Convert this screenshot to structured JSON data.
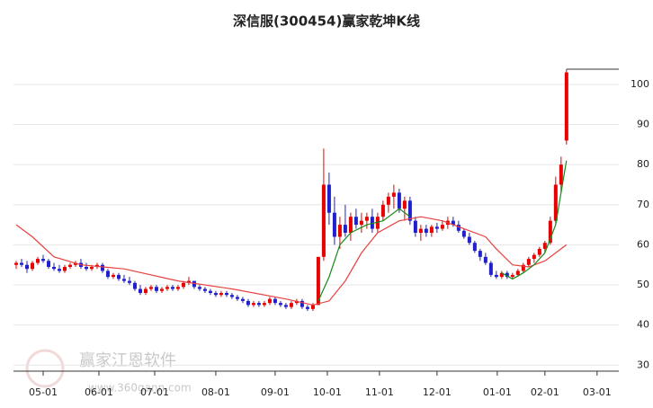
{
  "chart_data": {
    "type": "candlestick",
    "title": "深信服(300454)赢家乾坤K线",
    "watermark": "赢家江恩软件",
    "watermark_url": "www.360gann.com",
    "up_color": "#e60000",
    "down_color": "#1f1fcc",
    "ylim": [
      28.5,
      108.5
    ],
    "yticks": [
      30,
      40,
      50,
      60,
      70,
      80,
      90,
      100
    ],
    "xlim": [
      -0.5,
      111.7
    ],
    "xticks": [
      {
        "value": 5,
        "label": "05-01"
      },
      {
        "value": 15.33,
        "label": "06-01"
      },
      {
        "value": 25.67,
        "label": "07-01"
      },
      {
        "value": 37,
        "label": "08-01"
      },
      {
        "value": 48,
        "label": "09-01"
      },
      {
        "value": 57.67,
        "label": "10-01"
      },
      {
        "value": 67.33,
        "label": "11-01"
      },
      {
        "value": 78,
        "label": "12-01"
      },
      {
        "value": 89.17,
        "label": "01-01"
      },
      {
        "value": 98,
        "label": "02-01"
      },
      {
        "value": 107.67,
        "label": "03-01"
      }
    ],
    "grid": true,
    "ohlc": [
      [
        55,
        56,
        54,
        55.5
      ],
      [
        55.5,
        56.5,
        54.5,
        55
      ],
      [
        55,
        56,
        53,
        54
      ],
      [
        54,
        56,
        53.5,
        55.5
      ],
      [
        55.5,
        57,
        55,
        56.5
      ],
      [
        56.5,
        57.5,
        55.5,
        56
      ],
      [
        56,
        56.5,
        54,
        54.5
      ],
      [
        54.5,
        55.5,
        53.5,
        54
      ],
      [
        54,
        55,
        53,
        53.5
      ],
      [
        53.5,
        55,
        53,
        54.5
      ],
      [
        54.5,
        55.5,
        54,
        55
      ],
      [
        55,
        56,
        54.5,
        55.5
      ],
      [
        55.5,
        56.5,
        54,
        54.5
      ],
      [
        54.5,
        55.5,
        53.5,
        54
      ],
      [
        54,
        55,
        53.5,
        54.5
      ],
      [
        54.5,
        55.5,
        54,
        55
      ],
      [
        55,
        55.5,
        53,
        53.5
      ],
      [
        53.5,
        54,
        51.5,
        52
      ],
      [
        52,
        53,
        51.5,
        52.5
      ],
      [
        52.5,
        53,
        51,
        51.5
      ],
      [
        51.5,
        52.5,
        50.5,
        51
      ],
      [
        51,
        52,
        50,
        50.5
      ],
      [
        50.5,
        51,
        48.5,
        49
      ],
      [
        49,
        50,
        47.5,
        48
      ],
      [
        48,
        49.5,
        47.5,
        49
      ],
      [
        49,
        50,
        48.5,
        49.5
      ],
      [
        49.5,
        50,
        48,
        48.5
      ],
      [
        48.5,
        49.5,
        48,
        49
      ],
      [
        49,
        50,
        48.5,
        49.5
      ],
      [
        49.5,
        50,
        48.5,
        49
      ],
      [
        49,
        50,
        48.5,
        49.5
      ],
      [
        49.5,
        51,
        49,
        50.5
      ],
      [
        50.5,
        52,
        50,
        51
      ],
      [
        51,
        51,
        49,
        49.5
      ],
      [
        49.5,
        50,
        48.5,
        49
      ],
      [
        49,
        49.5,
        48,
        48.5
      ],
      [
        48.5,
        49,
        47.5,
        48
      ],
      [
        48,
        48.5,
        47,
        47.5
      ],
      [
        47.5,
        48.5,
        47,
        48
      ],
      [
        48,
        48.5,
        47,
        47.5
      ],
      [
        47.5,
        48,
        46.5,
        47
      ],
      [
        47,
        47.5,
        46,
        46.5
      ],
      [
        46.5,
        47,
        45.5,
        46
      ],
      [
        46,
        46.5,
        44.5,
        45
      ],
      [
        45,
        46,
        44.5,
        45.5
      ],
      [
        45.5,
        46,
        44.5,
        45
      ],
      [
        45,
        46,
        44.5,
        45.5
      ],
      [
        45.5,
        47,
        45,
        46.5
      ],
      [
        46.5,
        47,
        45,
        45.5
      ],
      [
        45.5,
        46,
        44.5,
        45
      ],
      [
        45,
        45.5,
        44,
        44.5
      ],
      [
        44.5,
        46,
        44,
        45.5
      ],
      [
        45.5,
        46.5,
        45,
        46
      ],
      [
        46,
        46.5,
        44,
        44.5
      ],
      [
        44.5,
        45,
        43.5,
        44
      ],
      [
        44,
        45.5,
        43.5,
        45
      ],
      [
        45,
        57,
        45,
        57
      ],
      [
        57,
        84,
        56,
        75
      ],
      [
        75,
        78,
        65,
        68
      ],
      [
        68,
        72,
        60,
        62
      ],
      [
        62,
        67,
        59,
        65
      ],
      [
        65,
        70,
        62,
        63
      ],
      [
        63,
        68,
        61,
        67
      ],
      [
        67,
        69,
        64,
        65
      ],
      [
        65,
        68,
        63,
        66
      ],
      [
        66,
        68,
        64,
        67
      ],
      [
        67,
        69,
        63,
        64
      ],
      [
        64,
        68,
        63,
        67
      ],
      [
        67,
        71,
        66,
        70
      ],
      [
        70,
        73,
        68,
        72
      ],
      [
        72,
        75,
        69,
        73
      ],
      [
        73,
        74,
        68,
        69
      ],
      [
        69,
        72,
        66,
        71
      ],
      [
        71,
        72,
        65,
        66
      ],
      [
        66,
        67,
        62,
        63
      ],
      [
        63,
        65,
        61,
        64
      ],
      [
        64,
        65,
        62,
        63
      ],
      [
        63,
        65,
        62,
        64.5
      ],
      [
        64.5,
        65.5,
        63,
        64
      ],
      [
        64,
        66,
        63.5,
        65
      ],
      [
        65,
        67,
        64,
        66
      ],
      [
        66,
        67,
        64.5,
        65
      ],
      [
        65,
        66,
        63,
        63.5
      ],
      [
        63.5,
        64,
        61.5,
        62
      ],
      [
        62,
        63,
        60,
        60.5
      ],
      [
        60.5,
        61,
        58,
        58.5
      ],
      [
        58.5,
        59,
        56,
        57
      ],
      [
        57,
        58,
        55,
        55.5
      ],
      [
        55.5,
        56,
        52,
        52.5
      ],
      [
        52.5,
        53.5,
        51.5,
        52
      ],
      [
        52,
        53.5,
        51.5,
        53
      ],
      [
        53,
        53.5,
        51.5,
        52
      ],
      [
        52,
        53,
        51.5,
        52.5
      ],
      [
        52.5,
        54,
        52,
        53.5
      ],
      [
        53.5,
        55.5,
        53,
        55
      ],
      [
        55,
        57,
        54.5,
        56.5
      ],
      [
        56.5,
        58,
        55.5,
        57.5
      ],
      [
        57.5,
        59.5,
        57,
        59
      ],
      [
        59,
        61,
        58,
        60.5
      ],
      [
        60.5,
        67,
        60,
        66
      ],
      [
        66,
        77,
        65,
        75
      ],
      [
        75,
        82,
        73,
        80
      ],
      [
        86,
        103.8,
        85,
        103
      ]
    ],
    "ma": [
      {
        "color": "#e8403f",
        "x": [
          0,
          3,
          7,
          12,
          20,
          30,
          40,
          50,
          55,
          58,
          61,
          64,
          67,
          71,
          75,
          79,
          83,
          87,
          89,
          92,
          95,
          98,
          100,
          102
        ],
        "values": [
          65,
          62,
          57,
          55,
          54,
          51,
          49,
          46.5,
          45,
          46,
          51,
          58,
          63,
          66,
          67,
          66,
          64,
          62,
          59,
          55,
          54.5,
          56,
          58,
          60
        ]
      },
      {
        "color": "#1a8a1a",
        "x": [
          56,
          58,
          60,
          62,
          65,
          68,
          71,
          73,
          80,
          90,
          92,
          94,
          96,
          98,
          100,
          102
        ],
        "values": [
          46,
          52,
          60,
          63,
          65,
          66,
          69,
          67,
          null,
          53,
          51.5,
          53,
          55,
          58,
          65,
          81
        ]
      }
    ]
  }
}
